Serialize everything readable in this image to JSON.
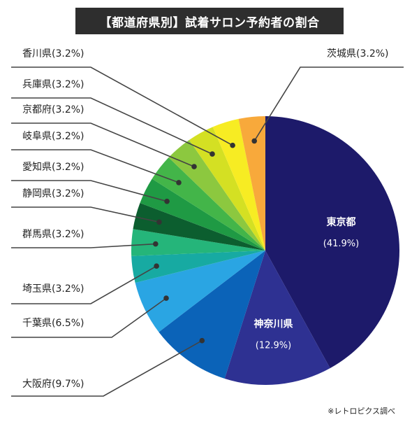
{
  "chart_data": {
    "type": "pie",
    "title": "【都道府県別】試着サロン予約者の割合",
    "note": "※レトロピクス調べ",
    "slices": [
      {
        "label": "東京都",
        "pct": "41.9%",
        "value": 41.9,
        "color": "#1d1a6a"
      },
      {
        "label": "神奈川県",
        "pct": "12.9%",
        "value": 12.9,
        "color": "#2e3192"
      },
      {
        "label": "大阪府",
        "pct": "9.7%",
        "value": 9.7,
        "color": "#0b63b8"
      },
      {
        "label": "千葉県",
        "pct": "6.5%",
        "value": 6.5,
        "color": "#2aa5e3"
      },
      {
        "label": "埼玉県",
        "pct": "3.2%",
        "value": 3.2,
        "color": "#17aaa2"
      },
      {
        "label": "群馬県",
        "pct": "3.2%",
        "value": 3.2,
        "color": "#25b57a"
      },
      {
        "label": "静岡県",
        "pct": "3.2%",
        "value": 3.2,
        "color": "#0c5e2f"
      },
      {
        "label": "愛知県",
        "pct": "3.2%",
        "value": 3.2,
        "color": "#1f9a44"
      },
      {
        "label": "岐阜県",
        "pct": "3.2%",
        "value": 3.2,
        "color": "#43b549"
      },
      {
        "label": "京都府",
        "pct": "3.2%",
        "value": 3.2,
        "color": "#8cc83f"
      },
      {
        "label": "兵庫県",
        "pct": "3.2%",
        "value": 3.2,
        "color": "#d4e023"
      },
      {
        "label": "香川県",
        "pct": "3.2%",
        "value": 3.2,
        "color": "#f7ec23"
      },
      {
        "label": "茨城県",
        "pct": "3.2%",
        "value": 3.2,
        "color": "#f8a93b"
      }
    ]
  }
}
